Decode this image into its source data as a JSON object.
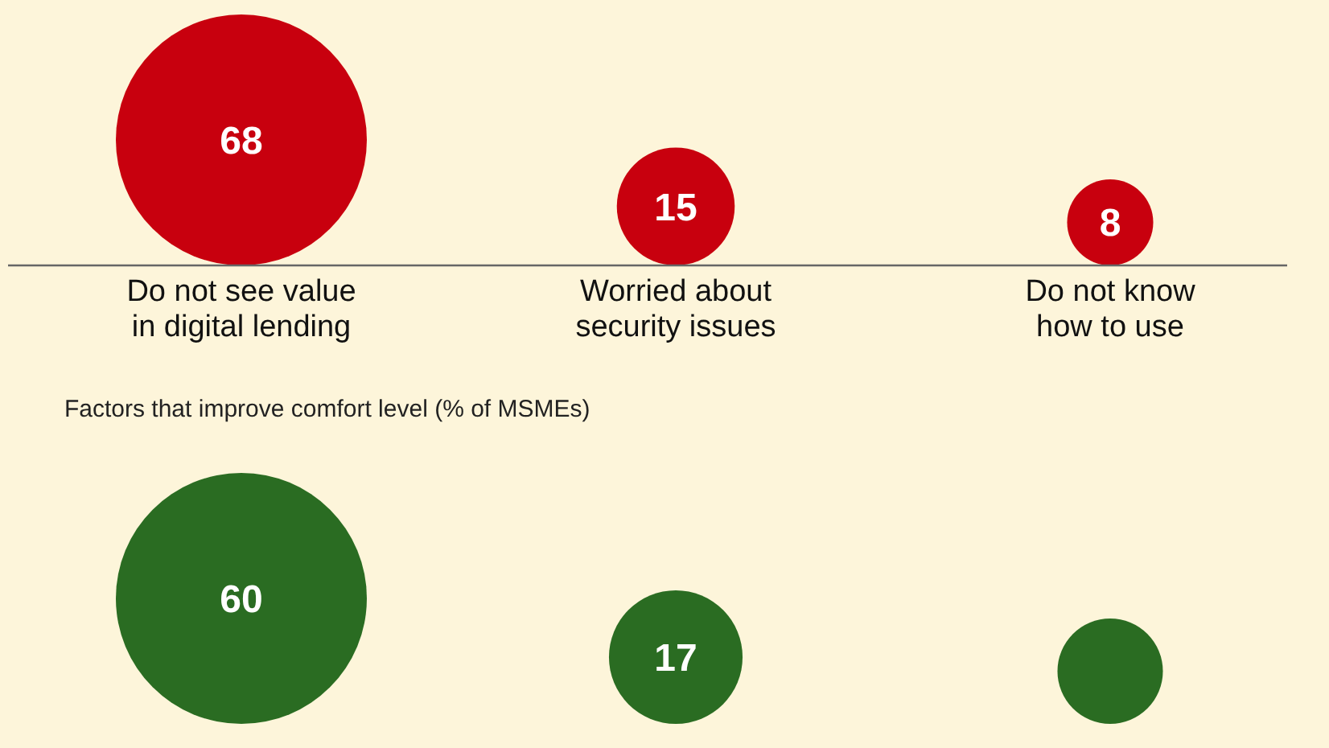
{
  "chart_data": [
    {
      "type": "other",
      "categories": [
        "Do not see value in digital lending",
        "Worried about security issues",
        "Do not know how to use"
      ],
      "values": [
        68,
        15,
        8
      ],
      "color": "#c8000e",
      "data_labels": true
    },
    {
      "type": "other",
      "title": "Factors that improve comfort level (% of MSMEs)",
      "categories": [
        null,
        null,
        null
      ],
      "values": [
        60,
        17,
        null
      ],
      "color": "#2a6c22",
      "data_labels": true
    }
  ]
}
